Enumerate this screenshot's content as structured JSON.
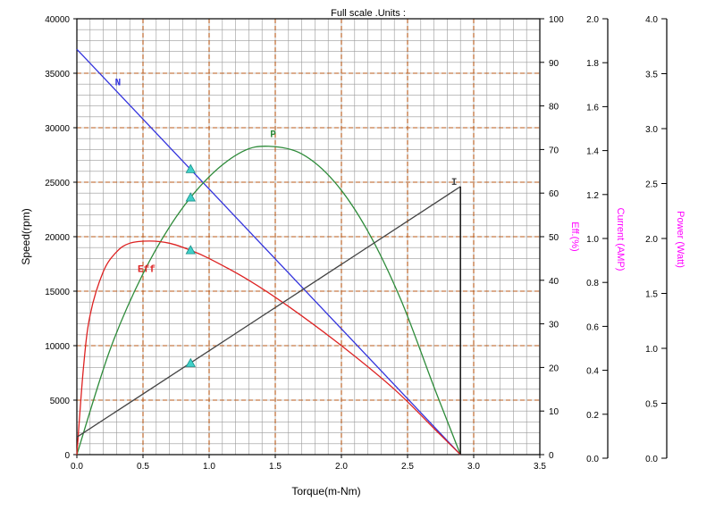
{
  "chart_data": {
    "type": "line",
    "title": "Full scale .Units :",
    "xlabel": "Torque(m-Nm)",
    "xlim": [
      0,
      3.5
    ],
    "x_ticks": [
      "0.0",
      "0.5",
      "1.0",
      "1.5",
      "2.0",
      "2.5",
      "3.0",
      "3.5"
    ],
    "axes": {
      "speed": {
        "label": "Speed(rpm)",
        "range": [
          0,
          40000
        ],
        "ticks": [
          "0",
          "5000",
          "10000",
          "15000",
          "20000",
          "25000",
          "30000",
          "35000",
          "40000"
        ]
      },
      "eff": {
        "label": "Eff.(%)",
        "range": [
          0,
          100
        ],
        "ticks": [
          "0",
          "10",
          "20",
          "30",
          "40",
          "50",
          "60",
          "70",
          "80",
          "90",
          "100"
        ]
      },
      "current": {
        "label": "Current (AMP)",
        "range": [
          0,
          2.0
        ],
        "ticks": [
          "0.0",
          "0.2",
          "0.4",
          "0.6",
          "0.8",
          "1.0",
          "1.2",
          "1.4",
          "1.6",
          "1.8",
          "2.0"
        ]
      },
      "power": {
        "label": "Power (Watt)",
        "range": [
          0,
          4.0
        ],
        "ticks": [
          "0.0",
          "0.5",
          "1.0",
          "1.5",
          "2.0",
          "2.5",
          "3.0",
          "3.5",
          "4.0"
        ]
      }
    },
    "grid": true,
    "series": [
      {
        "name": "N",
        "axis": "speed",
        "color": "#3333dd",
        "x": [
          0.0,
          2.9
        ],
        "y": [
          37200,
          0
        ]
      },
      {
        "name": "P",
        "axis": "power",
        "color": "#2e8b3a",
        "x": [
          0.0,
          0.25,
          0.5,
          0.75,
          1.0,
          1.25,
          1.45,
          1.7,
          1.95,
          2.2,
          2.45,
          2.7,
          2.9
        ],
        "y": [
          0.0,
          0.96,
          1.66,
          2.18,
          2.55,
          2.78,
          2.83,
          2.76,
          2.5,
          2.05,
          1.42,
          0.62,
          0.0
        ]
      },
      {
        "name": "Eff",
        "axis": "eff",
        "color": "#dd2222",
        "x": [
          0.0,
          0.05,
          0.1,
          0.2,
          0.3,
          0.4,
          0.55,
          0.7,
          0.85,
          1.0,
          1.3,
          1.6,
          2.0,
          2.4,
          2.7,
          2.9
        ],
        "y": [
          0.0,
          20,
          32,
          42,
          46.5,
          48.5,
          49,
          48.5,
          47,
          45,
          40,
          34,
          25,
          15,
          6,
          0.0
        ]
      },
      {
        "name": "I",
        "axis": "current",
        "color": "#444444",
        "x": [
          0.0,
          2.9
        ],
        "y": [
          0.08,
          1.23
        ]
      }
    ],
    "rated_markers": {
      "torque": 0.86,
      "color": "#40d0c8",
      "points": [
        {
          "axis": "speed",
          "value": 26200
        },
        {
          "axis": "power",
          "value": 2.36
        },
        {
          "axis": "eff",
          "value": 46.9
        },
        {
          "axis": "current",
          "value": 0.42
        }
      ]
    },
    "label_colors": {
      "left_axis": "#000000",
      "right_axes": "#ff00ff"
    }
  }
}
